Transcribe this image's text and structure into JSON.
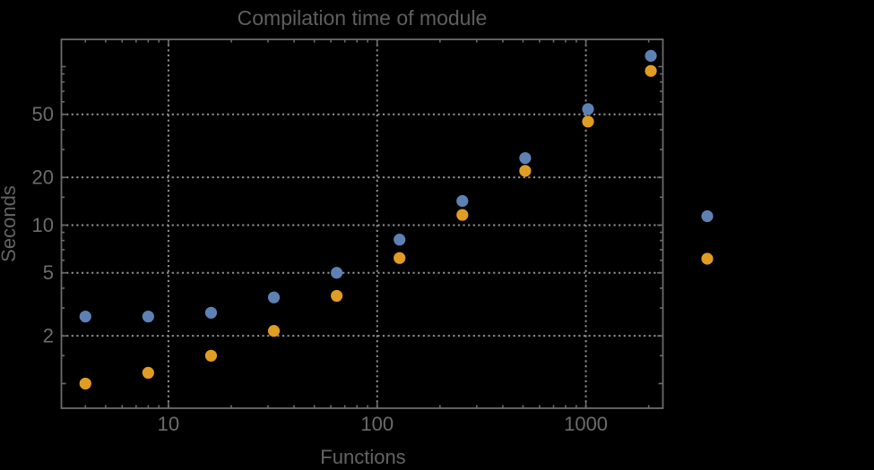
{
  "colors": {
    "background": "#000000",
    "title_text": "#5f5f5f",
    "label_text": "#646464",
    "tick_text": "#6c6c6c",
    "frame": "#6b6b6b",
    "gridline": "#8f8f8f",
    "series_blue": "#5e81b5",
    "series_orange": "#e19c24"
  },
  "chart_data": {
    "type": "scatter",
    "title": "Compilation time of module",
    "xlabel": "Functions",
    "ylabel": "Seconds",
    "x_scale": "log",
    "y_scale": "log",
    "xlim": [
      3.07,
      2339
    ],
    "ylim": [
      0.699,
      148.6
    ],
    "grid": "dotted lines at labeled major ticks, both axes",
    "legend_position": "outside-right, markers only (no visible labels)",
    "x": [
      4,
      8,
      16,
      32,
      64,
      128,
      256,
      512,
      1024,
      2048
    ],
    "series": [
      {
        "name": "series-1-blue",
        "color": "#5e81b5",
        "values": [
          2.65,
          2.65,
          2.8,
          3.5,
          5.0,
          8.1,
          14.2,
          26.5,
          54,
          117
        ]
      },
      {
        "name": "series-2-orange",
        "color": "#e19c24",
        "values": [
          1.0,
          1.17,
          1.5,
          2.15,
          3.58,
          6.2,
          11.6,
          22,
          45,
          94
        ]
      }
    ],
    "x_ticks": {
      "major": [
        {
          "value": 10,
          "label": "10"
        },
        {
          "value": 100,
          "label": "100"
        },
        {
          "value": 1000,
          "label": "1000"
        }
      ],
      "minor": [
        4,
        5,
        6,
        7,
        8,
        9,
        20,
        30,
        40,
        50,
        60,
        70,
        80,
        90,
        200,
        300,
        400,
        500,
        600,
        700,
        800,
        900,
        2000
      ]
    },
    "y_ticks": {
      "major": [
        {
          "value": 2,
          "label": "2"
        },
        {
          "value": 5,
          "label": "5"
        },
        {
          "value": 10,
          "label": "10"
        },
        {
          "value": 20,
          "label": "20"
        },
        {
          "value": 50,
          "label": "50"
        }
      ],
      "medium": [
        1,
        100
      ],
      "minor": [
        1.5,
        3,
        4,
        6,
        7,
        8,
        9,
        15,
        30,
        40,
        60,
        70,
        80,
        90
      ]
    },
    "legend_markers": [
      {
        "series": "series-1-blue",
        "color": "#5e81b5"
      },
      {
        "series": "series-2-orange",
        "color": "#e19c24"
      }
    ]
  }
}
